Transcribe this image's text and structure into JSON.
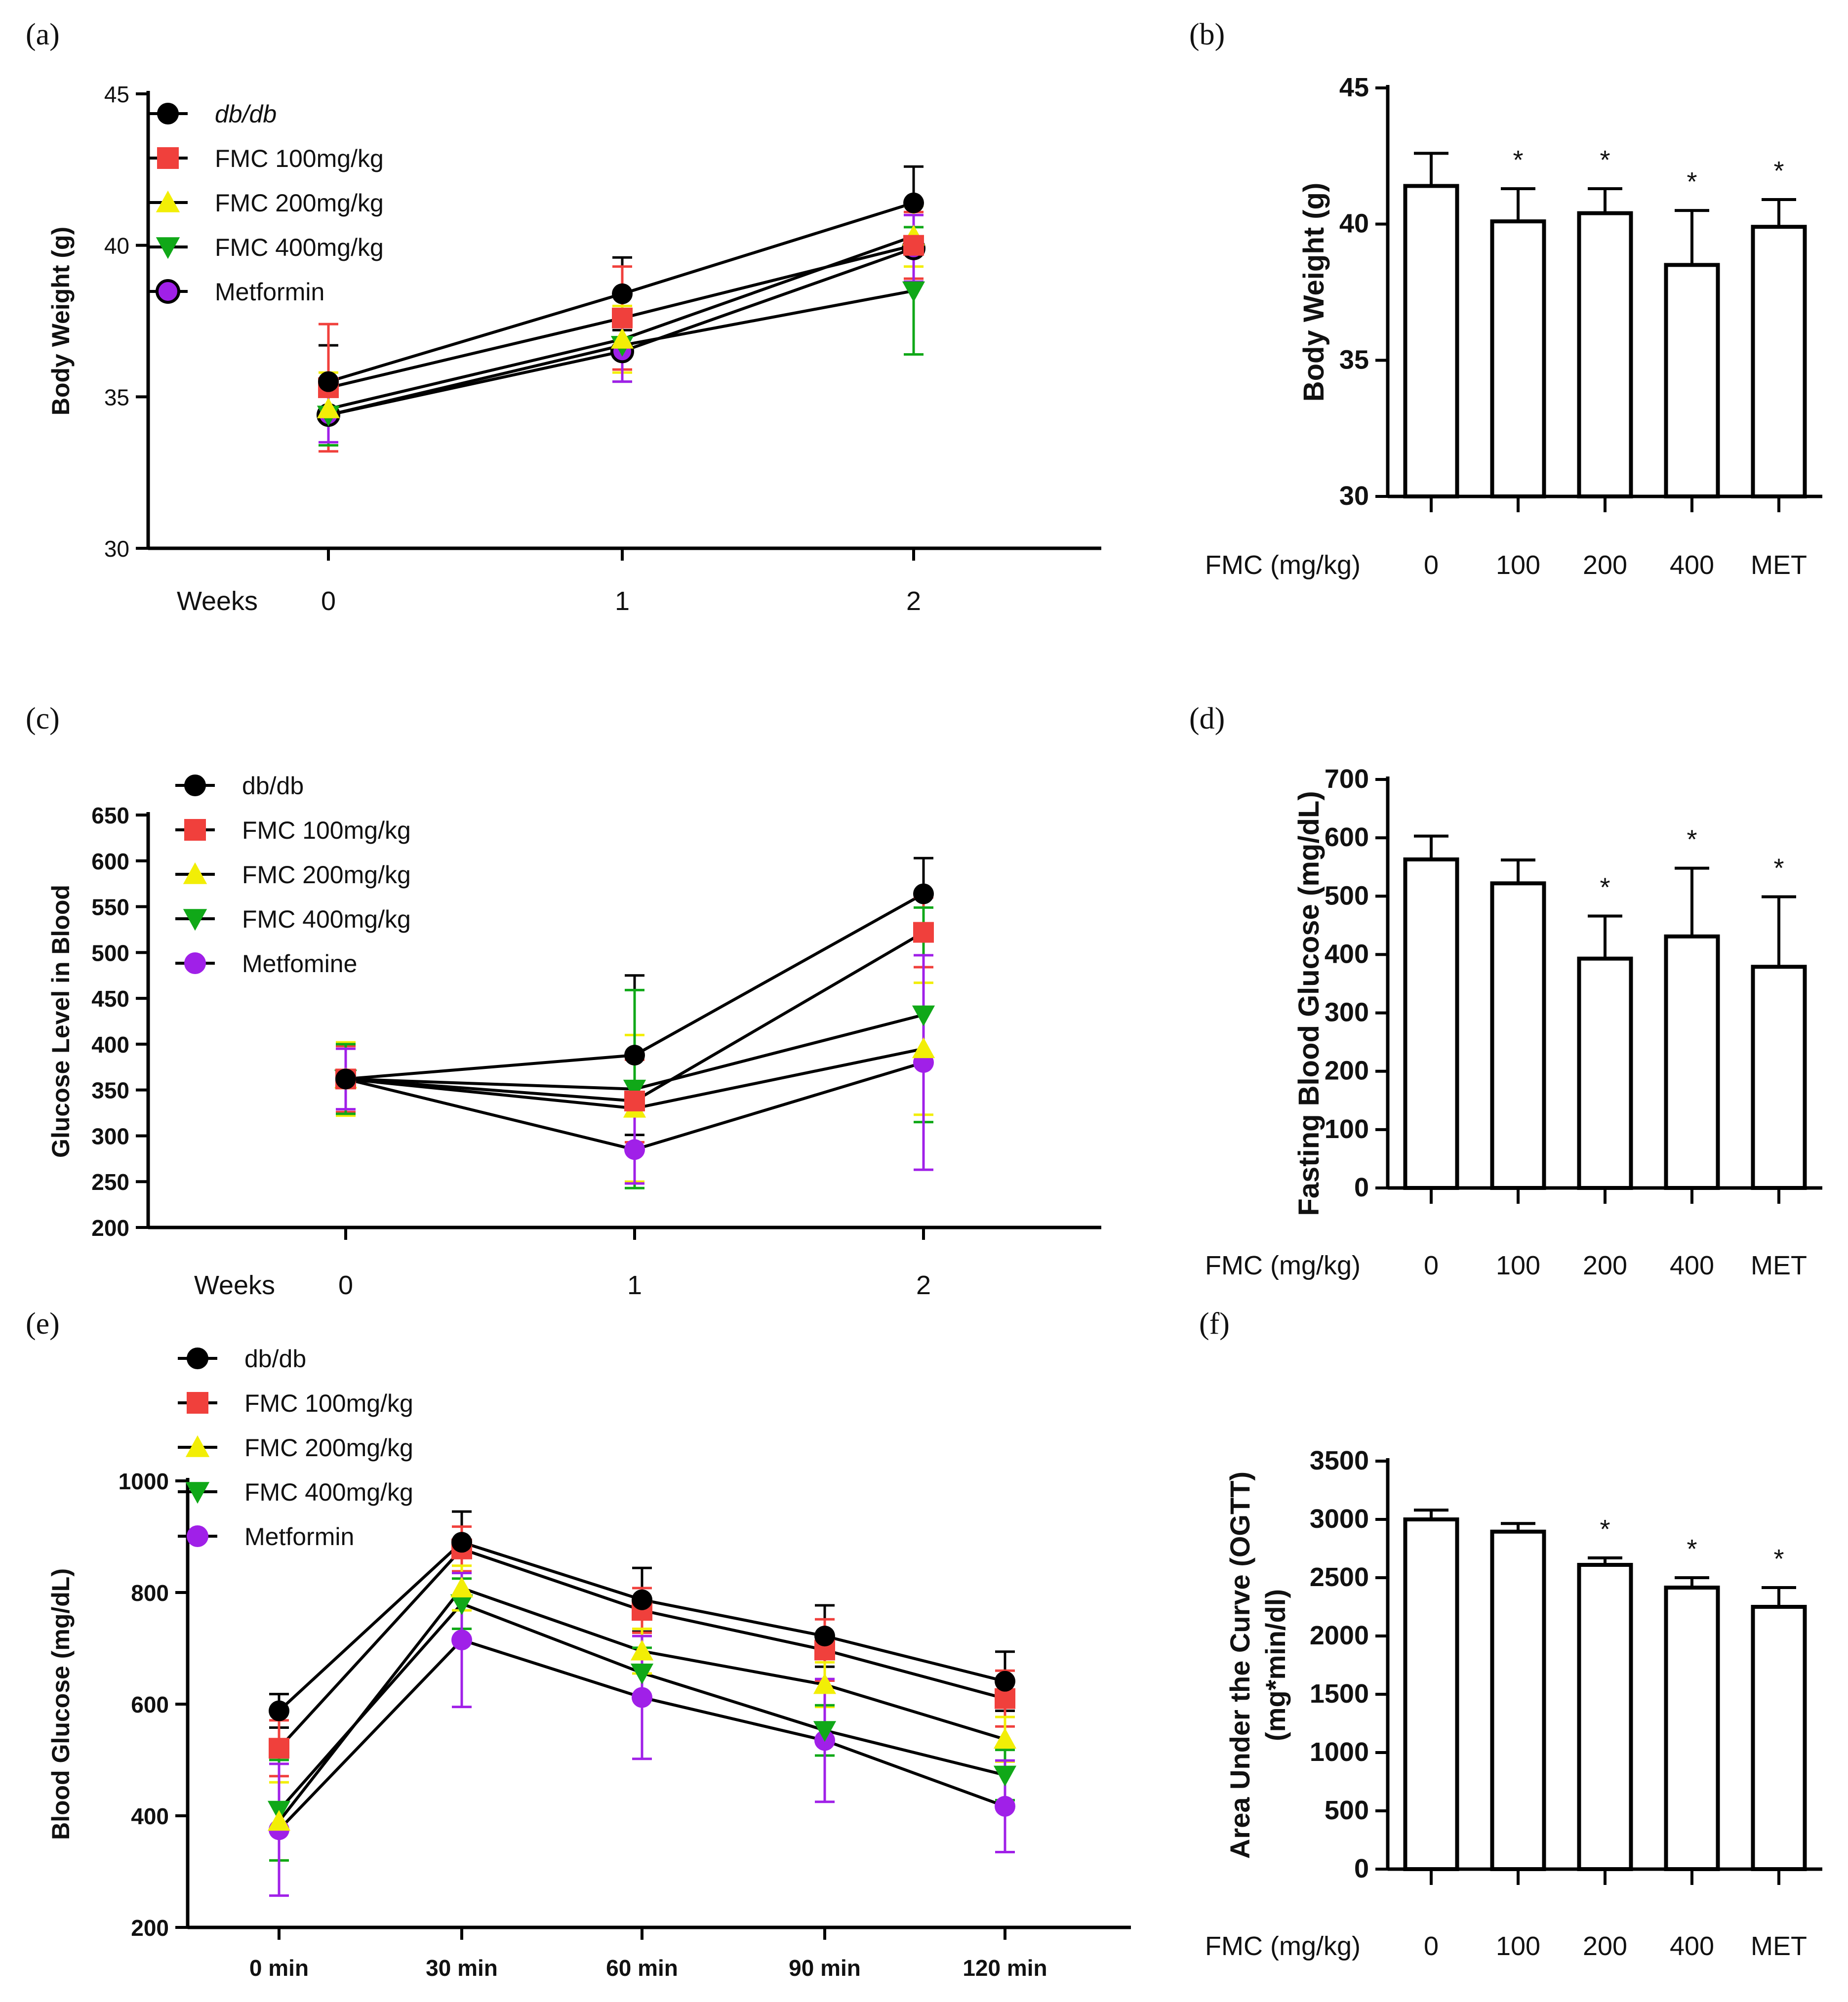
{
  "colors": {
    "dbdb": "#000000",
    "fmc100": "#f0403c",
    "fmc200": "#f2ee06",
    "fmc400": "#10a818",
    "met": "#a020e8"
  },
  "marker_icons": [
    "circle-marker-icon",
    "square-marker-icon",
    "triangle-up-marker-icon",
    "triangle-down-marker-icon",
    "circle-marker-icon"
  ],
  "chart_data": [
    {
      "panel": "(a)",
      "type": "line",
      "ylabel": "Body Weight (g)",
      "xlabel": "Weeks",
      "x": [
        "0",
        "1",
        "2"
      ],
      "ylim": [
        30,
        45
      ],
      "yticks": [
        30,
        35,
        40,
        45
      ],
      "tick_bold": false,
      "series": [
        {
          "name": "db/db",
          "italic": true,
          "marker": "circle",
          "color": "#000000",
          "values": [
            35.5,
            38.4,
            41.4
          ],
          "err": [
            1.2,
            1.2,
            1.2
          ]
        },
        {
          "name": "FMC 100mg/kg",
          "marker": "square",
          "color": "#f0403c",
          "values": [
            35.3,
            37.6,
            40.0
          ],
          "err": [
            2.1,
            1.7,
            1.1
          ]
        },
        {
          "name": "FMC 200mg/kg",
          "marker": "triangle-up",
          "color": "#f2ee06",
          "values": [
            34.6,
            36.9,
            40.3
          ],
          "err": [
            1.2,
            1.1,
            1.0
          ]
        },
        {
          "name": "FMC 400mg/kg",
          "marker": "triangle-down",
          "color": "#10a818",
          "values": [
            34.4,
            36.7,
            38.5
          ],
          "err": [
            1.0,
            1.2,
            2.1
          ]
        },
        {
          "name": "Metformin",
          "marker": "circle-open",
          "color": "#a020e8",
          "values": [
            34.4,
            36.5,
            39.9
          ],
          "err": [
            0.9,
            1.0,
            1.1
          ]
        }
      ]
    },
    {
      "panel": "(b)",
      "type": "bar",
      "ylabel": "Body Weight (g)",
      "xlabel": "FMC (mg/kg)",
      "categories": [
        "0",
        "100",
        "200",
        "400",
        "MET"
      ],
      "values": [
        41.4,
        40.1,
        40.4,
        38.5,
        39.9
      ],
      "err": [
        1.2,
        1.2,
        0.9,
        2.0,
        1.0
      ],
      "significant": [
        "",
        "*",
        "*",
        "*",
        "*"
      ],
      "ylim": [
        30,
        45
      ],
      "yticks": [
        30,
        35,
        40,
        45
      ]
    },
    {
      "panel": "(c)",
      "type": "line",
      "ylabel": "Glucose Level in Blood",
      "xlabel": "Weeks",
      "x": [
        "0",
        "1",
        "2"
      ],
      "ylim": [
        200,
        650
      ],
      "yticks": [
        200,
        250,
        300,
        350,
        400,
        450,
        500,
        550,
        600,
        650
      ],
      "tick_bold": true,
      "series": [
        {
          "name": "db/db",
          "marker": "circle",
          "color": "#000000",
          "values": [
            362,
            388,
            564
          ],
          "err": [
            37,
            87,
            39
          ]
        },
        {
          "name": "FMC 100mg/kg",
          "marker": "square",
          "color": "#f0403c",
          "values": [
            362,
            338,
            522
          ],
          "err": [
            36,
            45,
            38
          ]
        },
        {
          "name": "FMC 200mg/kg",
          "marker": "triangle-up",
          "color": "#f2ee06",
          "values": [
            362,
            330,
            395
          ],
          "err": [
            40,
            80,
            72
          ]
        },
        {
          "name": "FMC 400mg/kg",
          "marker": "triangle-down",
          "color": "#10a818",
          "values": [
            362,
            351,
            432
          ],
          "err": [
            38,
            108,
            117
          ]
        },
        {
          "name": "Metfomine",
          "marker": "circle",
          "color": "#a020e8",
          "values": [
            362,
            285,
            380
          ],
          "err": [
            33,
            37,
            117
          ]
        }
      ]
    },
    {
      "panel": "(d)",
      "type": "bar",
      "ylabel": "Fasting Blood Glucose (mg/dL)",
      "xlabel": "FMC (mg/kg)",
      "categories": [
        "0",
        "100",
        "200",
        "400",
        "MET"
      ],
      "values": [
        563,
        522,
        393,
        431,
        379
      ],
      "err": [
        40,
        40,
        73,
        117,
        120
      ],
      "significant": [
        "",
        "",
        "*",
        "*",
        "*"
      ],
      "ylim": [
        0,
        700
      ],
      "yticks": [
        0,
        100,
        200,
        300,
        400,
        500,
        600,
        700
      ]
    },
    {
      "panel": "(e)",
      "type": "line",
      "ylabel": "Blood Glucose (mg/dL)",
      "xlabel": "",
      "x": [
        "0 min",
        "30 min",
        "60 min",
        "90 min",
        "120 min"
      ],
      "ylim": [
        200,
        1000
      ],
      "yticks": [
        200,
        400,
        600,
        800,
        1000
      ],
      "tick_bold": true,
      "series": [
        {
          "name": "db/db",
          "marker": "circle",
          "color": "#000000",
          "values": [
            588,
            890,
            787,
            722,
            641
          ],
          "err": [
            30,
            55,
            57,
            55,
            53
          ]
        },
        {
          "name": "FMC 100mg/kg",
          "marker": "square",
          "color": "#f0403c",
          "values": [
            521,
            878,
            768,
            697,
            610
          ],
          "err": [
            50,
            40,
            40,
            55,
            50
          ]
        },
        {
          "name": "FMC 200mg/kg",
          "marker": "triangle-up",
          "color": "#f2ee06",
          "values": [
            390,
            808,
            695,
            635,
            537
          ],
          "err": [
            70,
            40,
            40,
            40,
            40
          ]
        },
        {
          "name": "FMC 400mg/kg",
          "marker": "triangle-down",
          "color": "#10a818",
          "values": [
            410,
            780,
            656,
            553,
            473
          ],
          "err": [
            90,
            45,
            45,
            45,
            45
          ]
        },
        {
          "name": "Metformin",
          "marker": "circle",
          "color": "#a020e8",
          "values": [
            375,
            715,
            612,
            535,
            417
          ],
          "err": [
            118,
            120,
            110,
            110,
            82
          ]
        }
      ]
    },
    {
      "panel": "(f)",
      "type": "bar",
      "ylabel": "Area Under the Curve (OGTT)",
      "ylabel2": "(mg*min/dl)",
      "xlabel": "FMC (mg/kg)",
      "categories": [
        "0",
        "100",
        "200",
        "400",
        "MET"
      ],
      "values": [
        3000,
        2895,
        2610,
        2415,
        2250
      ],
      "err": [
        80,
        70,
        60,
        85,
        165
      ],
      "significant": [
        "",
        "",
        "*",
        "*",
        "*"
      ],
      "ylim": [
        0,
        3500
      ],
      "yticks": [
        0,
        500,
        1000,
        1500,
        2000,
        2500,
        3000,
        3500
      ]
    }
  ]
}
